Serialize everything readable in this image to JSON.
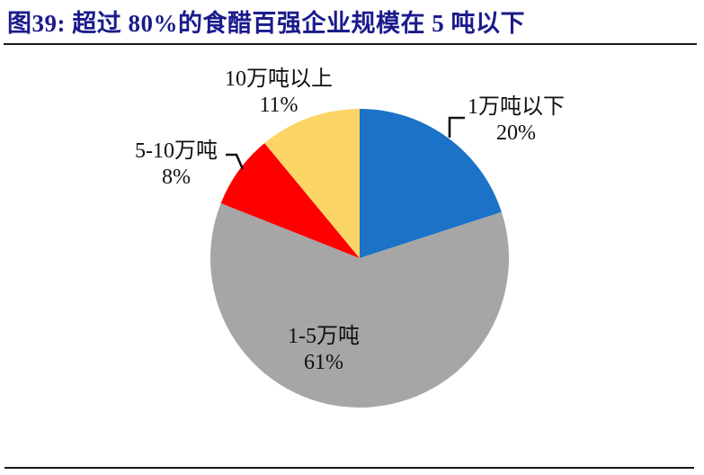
{
  "header": {
    "title": "图39: 超过 80%的食醋百强企业规模在 5 吨以下"
  },
  "chart_data": {
    "type": "pie",
    "title": "超过 80%的食醋百强企业规模在 5 吨以下",
    "unit": "%",
    "start_angle_deg": 0,
    "direction": "clockwise",
    "legend_position": "none",
    "slices": [
      {
        "label": "1万吨以下",
        "value": 20,
        "pct_label": "20%",
        "color": "#1b72c6"
      },
      {
        "label": "1-5万吨",
        "value": 61,
        "pct_label": "61%",
        "color": "#a6a6a6"
      },
      {
        "label": "5-10万吨",
        "value": 8,
        "pct_label": "8%",
        "color": "#ff0000"
      },
      {
        "label": "10万吨以上",
        "value": 11,
        "pct_label": "11%",
        "color": "#fbd566"
      }
    ]
  },
  "colors": {
    "title_text": "#1b1b8c",
    "divider": "#17171d",
    "label_text": "#101010",
    "leader_line": "#141414"
  }
}
